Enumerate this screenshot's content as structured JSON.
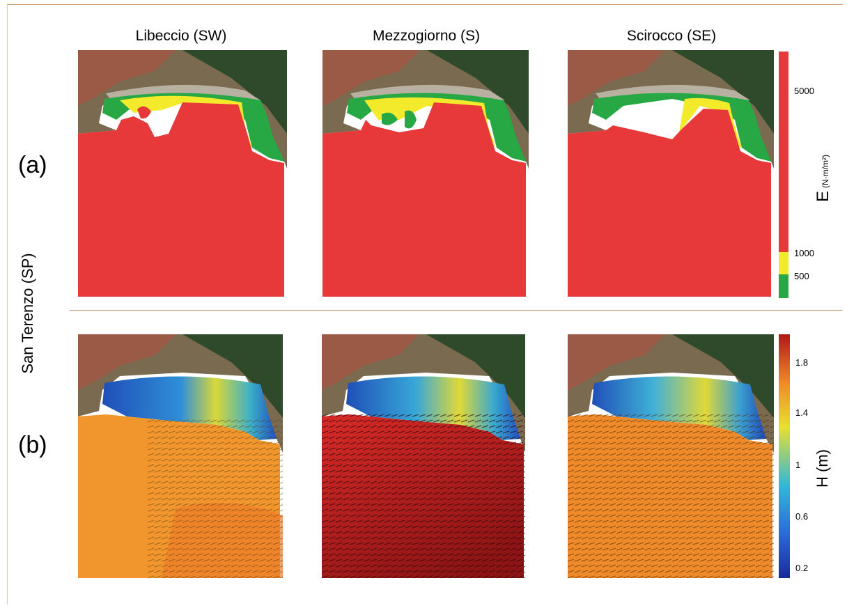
{
  "columns": [
    {
      "title": "Libeccio (SW)"
    },
    {
      "title": "Mezzogiorno (S)"
    },
    {
      "title": "Scirocco (SE)"
    }
  ],
  "rows": [
    {
      "label": "(a)"
    },
    {
      "label": "(b)"
    }
  ],
  "side_label": "San Terenzo (SP)",
  "colorbar_energy": {
    "title": "E",
    "unit": "(N·m/m²)",
    "ticks": [
      "5000",
      "1000",
      "500"
    ],
    "colors": {
      "high": "#e8393a",
      "mid": "#f2ea2a",
      "low": "#27a844"
    }
  },
  "colorbar_height": {
    "title": "H (m)",
    "ticks": [
      "1.8",
      "1.4",
      "1",
      "0.6",
      "0.2"
    ],
    "range": [
      0.1,
      2.0
    ]
  }
}
